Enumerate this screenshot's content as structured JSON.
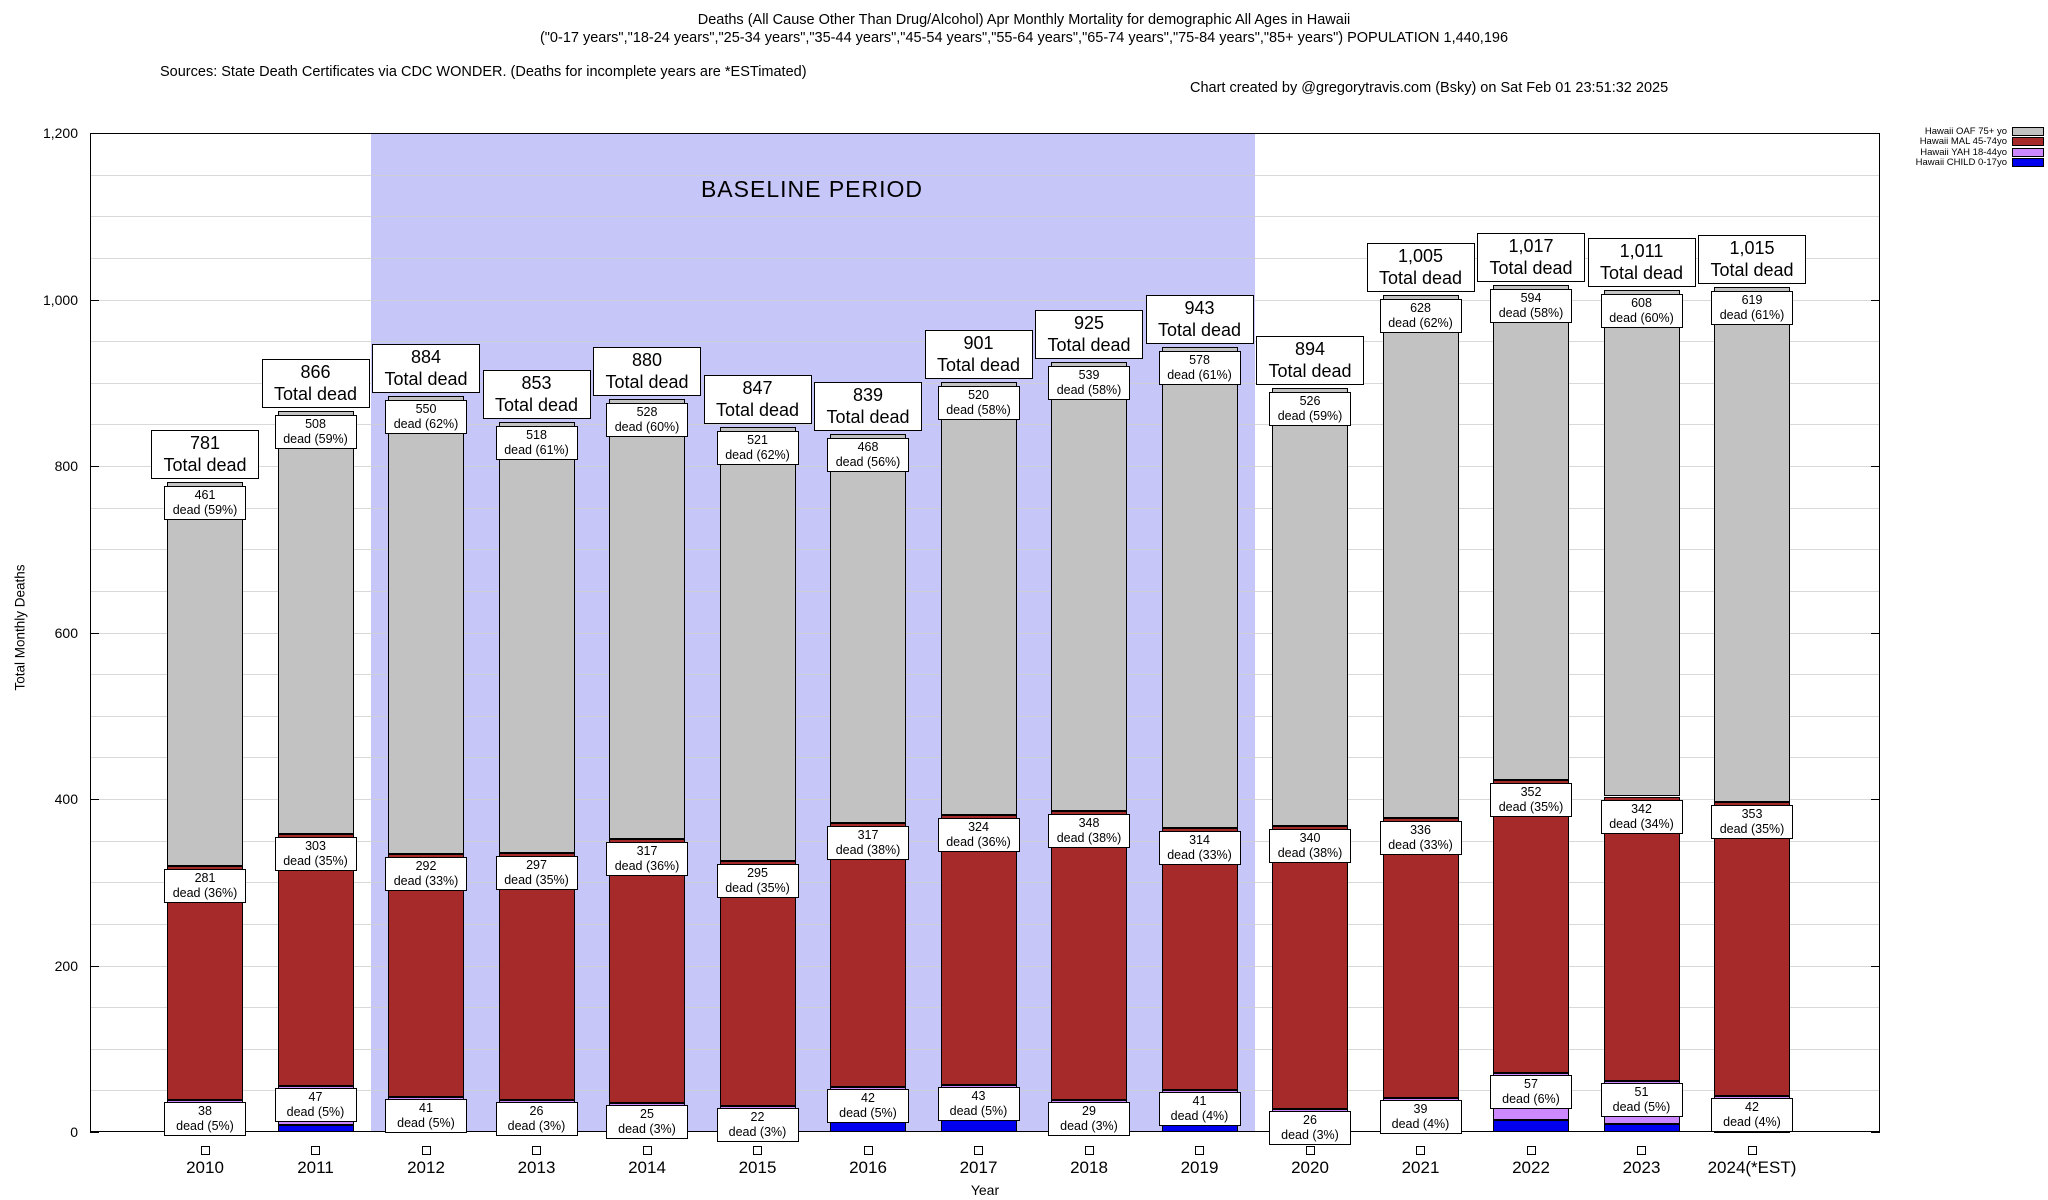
{
  "header": {
    "title_line1": "Deaths (All Cause Other Than Drug/Alcohol) Apr Monthly Mortality for demographic All Ages in Hawaii",
    "title_line2": "(\"0-17 years\",\"18-24 years\",\"25-34 years\",\"35-44 years\",\"45-54 years\",\"55-64 years\",\"65-74 years\",\"75-84 years\",\"85+ years\") POPULATION 1,440,196",
    "title_line3_left": "Sources: State Death Certificates via CDC WONDER. (Deaths for incomplete years are *ESTimated)",
    "title_line3_right": "Chart created by @gregorytravis.com (Bsky) on Sat Feb 01 23:51:32 2025"
  },
  "chart_data": {
    "type": "bar",
    "stacked": true,
    "title": "Deaths (All Cause Other Than Drug/Alcohol) Apr Monthly Mortality for demographic All Ages in Hawaii",
    "xlabel": "Year",
    "ylabel": "Total Monthly Deaths",
    "ylim": [
      0,
      1200
    ],
    "ytick_interval": 200,
    "ytick_labels": [
      "0",
      "200",
      "400",
      "600",
      "800",
      "1,000",
      "1,200"
    ],
    "minor_grid_interval": 50,
    "grid": true,
    "legend_position": "top-right",
    "baseline_band": {
      "label": "BASELINE PERIOD",
      "from_year": "2012",
      "to_year": "2019",
      "color": "#c6c6f8"
    },
    "categories": [
      "2010",
      "2011",
      "2012",
      "2013",
      "2014",
      "2015",
      "2016",
      "2017",
      "2018",
      "2019",
      "2020",
      "2021",
      "2022",
      "2023",
      "2024(*EST)"
    ],
    "totals": [
      781,
      866,
      884,
      853,
      880,
      847,
      839,
      901,
      925,
      943,
      894,
      1005,
      1017,
      1011,
      1015
    ],
    "total_labels": [
      "781",
      "866",
      "884",
      "853",
      "880",
      "847",
      "839",
      "901",
      "925",
      "943",
      "894",
      "1,005",
      "1,017",
      "1,011",
      "1,015"
    ],
    "total_label_suffix": "Total dead",
    "segment_label_word": "dead",
    "series": [
      {
        "key": "child",
        "name": "Hawaii CHILD 0-17yo",
        "color": "#0000ee",
        "values": [
          1,
          8,
          1,
          12,
          10,
          9,
          12,
          14,
          9,
          10,
          2,
          2,
          14,
          10,
          1
        ],
        "show_labels": false,
        "pct": []
      },
      {
        "key": "yah",
        "name": "Hawaii YAH 18-44yo",
        "color": "#cc88ff",
        "values": [
          38,
          47,
          41,
          26,
          25,
          22,
          42,
          43,
          29,
          41,
          26,
          39,
          57,
          51,
          42
        ],
        "show_labels": true,
        "pct": [
          5,
          5,
          5,
          3,
          3,
          3,
          5,
          5,
          3,
          4,
          3,
          4,
          6,
          5,
          4
        ]
      },
      {
        "key": "mal",
        "name": "Hawaii MAL 45-74yo",
        "color": "#a62a2a",
        "values": [
          281,
          303,
          292,
          297,
          317,
          295,
          317,
          324,
          348,
          314,
          340,
          336,
          352,
          342,
          353
        ],
        "show_labels": true,
        "pct": [
          36,
          35,
          33,
          35,
          36,
          35,
          38,
          36,
          38,
          33,
          38,
          33,
          35,
          34,
          35
        ]
      },
      {
        "key": "oaf",
        "name": "Hawaii OAF 75+ yo",
        "color": "#c2c2c2",
        "values": [
          461,
          508,
          550,
          518,
          528,
          521,
          468,
          520,
          539,
          578,
          526,
          628,
          594,
          608,
          619
        ],
        "show_labels": true,
        "pct": [
          59,
          59,
          62,
          61,
          60,
          62,
          56,
          58,
          58,
          61,
          59,
          62,
          58,
          60,
          61
        ]
      }
    ]
  },
  "legend": {
    "entries": [
      {
        "label": "Hawaii OAF 75+ yo",
        "color": "#c2c2c2"
      },
      {
        "label": "Hawaii MAL 45-74yo",
        "color": "#a62a2a"
      },
      {
        "label": "Hawaii YAH 18-44yo",
        "color": "#cc88ff"
      },
      {
        "label": "Hawaii CHILD 0-17yo",
        "color": "#0000ee"
      }
    ]
  }
}
